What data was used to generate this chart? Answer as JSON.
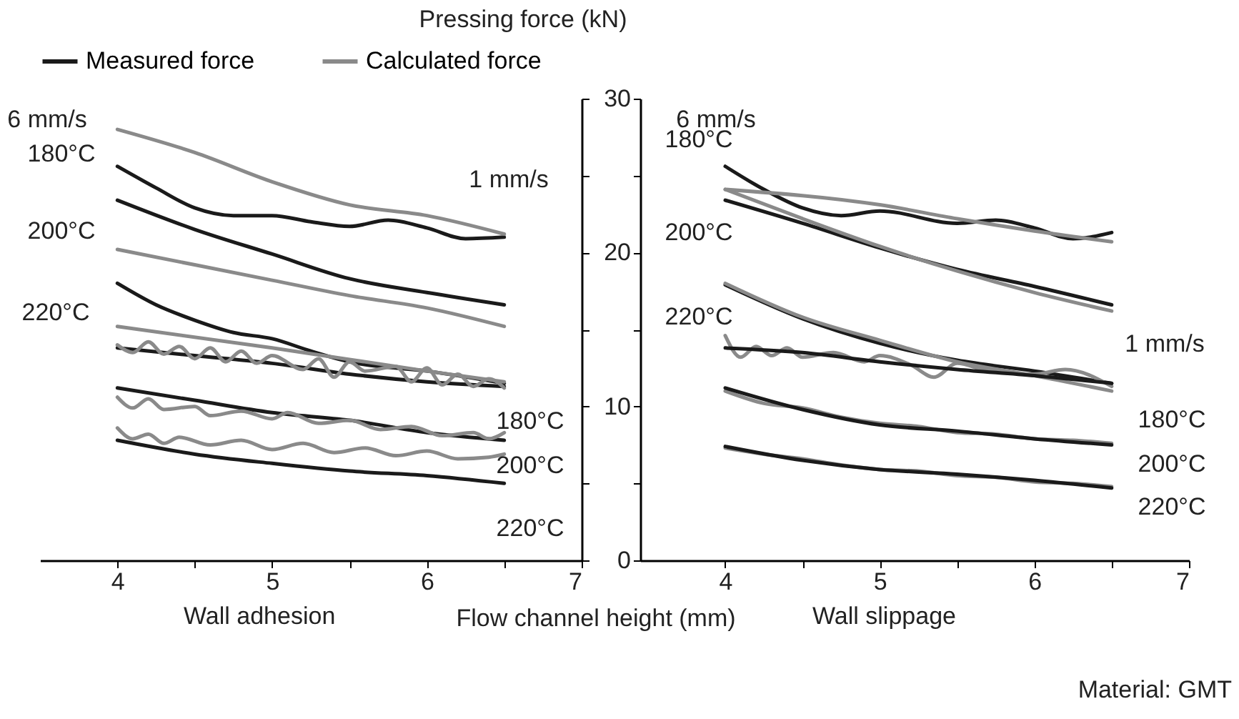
{
  "chart_data": [
    {
      "type": "line",
      "xlabel": "Wall adhesion",
      "title": "Flow channel height (mm)",
      "xlim": [
        3.5,
        7
      ],
      "ylim": [
        0,
        30
      ],
      "xticks": [
        4,
        {
          "value": 4.5,
          "label": null
        },
        5,
        {
          "value": 5.5,
          "label": null
        },
        6,
        {
          "value": 6.5,
          "label": null
        },
        7
      ],
      "yticks": [
        0,
        {
          "value": 5,
          "label": null
        },
        10,
        {
          "value": 15,
          "label": null
        },
        20,
        {
          "value": 25,
          "label": null
        },
        30
      ],
      "tick_labels": "x",
      "legend": "top",
      "line_style": "solid",
      "series": [
        {
          "name": "Measured force",
          "color": "#1a1a1a",
          "x": [
            4,
            4.25,
            4.5,
            4.75,
            5,
            5.25,
            5.5,
            5.75,
            6,
            6.25,
            6.5
          ],
          "values": [
            25.6,
            24.2,
            22.9,
            22.4,
            22.4,
            22.0,
            21.7,
            22.1,
            21.6,
            20.9,
            21.0
          ]
        },
        {
          "name": "Calculated force",
          "color": "#8a8a8a",
          "x": [
            4,
            4.5,
            5,
            5.5,
            6,
            6.5
          ],
          "values": [
            28.0,
            26.5,
            24.6,
            23.1,
            22.4,
            21.2
          ]
        },
        {
          "color": "#1a1a1a",
          "x": [
            4,
            4.5,
            5,
            5.5,
            6,
            6.5
          ],
          "values": [
            23.4,
            21.5,
            19.9,
            18.3,
            17.4,
            16.6
          ]
        },
        {
          "color": "#8a8a8a",
          "x": [
            4,
            4.5,
            5,
            5.5,
            6,
            6.5
          ],
          "values": [
            20.2,
            19.2,
            18.2,
            17.2,
            16.4,
            15.2
          ]
        },
        {
          "color": "#1a1a1a",
          "x": [
            4,
            4.25,
            4.5,
            4.75,
            5,
            5.25,
            5.5,
            6,
            6.5
          ],
          "values": [
            18.0,
            16.6,
            15.6,
            14.8,
            14.4,
            13.6,
            12.9,
            12.3,
            11.5
          ]
        },
        {
          "color": "#1a1a1a",
          "x": [
            4,
            4.5,
            5,
            5.5,
            6,
            6.5
          ],
          "values": [
            13.8,
            13.3,
            12.8,
            12.1,
            11.6,
            11.3
          ]
        },
        {
          "color": "#8a8a8a",
          "x": [
            4,
            5,
            6,
            6.5
          ],
          "values": [
            15.2,
            13.8,
            12.3,
            11.6
          ]
        },
        {
          "color": "#8a8a8a",
          "x": [
            4,
            4.1,
            4.2,
            4.3,
            4.4,
            4.5,
            4.6,
            4.7,
            4.8,
            4.9,
            5,
            5.2,
            5.3,
            5.4,
            5.5,
            5.6,
            5.8,
            5.9,
            6,
            6.1,
            6.2,
            6.3,
            6.4,
            6.5
          ],
          "values": [
            14.0,
            13.5,
            14.2,
            13.4,
            13.9,
            13.1,
            13.8,
            12.9,
            13.6,
            12.8,
            13.3,
            12.4,
            13.1,
            11.9,
            12.9,
            12.3,
            12.6,
            11.6,
            12.5,
            11.4,
            12.1,
            11.3,
            11.8,
            11.2
          ]
        },
        {
          "color": "#1a1a1a",
          "x": [
            4,
            4.5,
            5,
            5.5,
            6,
            6.5
          ],
          "values": [
            11.2,
            10.4,
            9.6,
            9.1,
            8.3,
            7.8
          ]
        },
        {
          "color": "#8a8a8a",
          "x": [
            4,
            4.1,
            4.2,
            4.3,
            4.5,
            4.6,
            4.8,
            5,
            5.1,
            5.3,
            5.5,
            5.7,
            5.9,
            6.1,
            6.3,
            6.4,
            6.5
          ],
          "values": [
            10.6,
            9.9,
            10.5,
            9.8,
            10.0,
            9.4,
            9.7,
            9.2,
            9.6,
            8.9,
            9.1,
            8.5,
            8.7,
            8.1,
            8.3,
            7.9,
            8.3
          ]
        },
        {
          "color": "#8a8a8a",
          "x": [
            4,
            4.1,
            4.2,
            4.3,
            4.4,
            4.6,
            4.8,
            5,
            5.2,
            5.4,
            5.6,
            5.8,
            6,
            6.2,
            6.4,
            6.5
          ],
          "values": [
            8.6,
            7.9,
            8.2,
            7.6,
            8.0,
            7.5,
            7.8,
            7.2,
            7.6,
            7.0,
            7.3,
            6.8,
            7.1,
            6.6,
            6.7,
            6.9
          ]
        },
        {
          "color": "#1a1a1a",
          "x": [
            4,
            4.5,
            5,
            5.5,
            6,
            6.5
          ],
          "values": [
            7.8,
            6.9,
            6.3,
            5.8,
            5.5,
            5.0
          ]
        }
      ],
      "annotations": [
        "6 mm/s",
        "180°C",
        "200°C",
        "220°C",
        "1 mm/s",
        "180°C",
        "200°C",
        "220°C"
      ]
    },
    {
      "type": "line",
      "xlabel": "Wall slippage",
      "ylabel": "Pressing force (kN)",
      "xlim": [
        3.45,
        7
      ],
      "ylim": [
        0,
        30
      ],
      "xticks": [
        4,
        {
          "value": 4.5,
          "label": null
        },
        5,
        {
          "value": 5.5,
          "label": null
        },
        6,
        {
          "value": 6.5,
          "label": null
        },
        7
      ],
      "yticks": [
        0,
        {
          "value": 5,
          "label": null
        },
        10,
        {
          "value": 15,
          "label": null
        },
        20,
        {
          "value": 25,
          "label": null
        },
        30
      ],
      "line_style": "solid",
      "series": [
        {
          "color": "#1a1a1a",
          "x": [
            4,
            4.25,
            4.5,
            4.75,
            5,
            5.5,
            5.75,
            6,
            6.25,
            6.5
          ],
          "values": [
            25.6,
            24.1,
            22.9,
            22.4,
            22.7,
            21.9,
            22.1,
            21.6,
            20.9,
            21.3
          ]
        },
        {
          "color": "#8a8a8a",
          "x": [
            4,
            5,
            5.5,
            6,
            6.5
          ],
          "values": [
            24.1,
            23.1,
            22.2,
            21.4,
            20.7
          ]
        },
        {
          "color": "#1a1a1a",
          "x": [
            4,
            4.5,
            5,
            5.5,
            6,
            6.5
          ],
          "values": [
            23.4,
            21.9,
            20.3,
            18.9,
            17.8,
            16.6
          ]
        },
        {
          "color": "#8a8a8a",
          "x": [
            4,
            4.5,
            5,
            5.5,
            6,
            6.5
          ],
          "values": [
            24.1,
            22.2,
            20.4,
            18.8,
            17.4,
            16.2
          ]
        },
        {
          "color": "#1a1a1a",
          "x": [
            4,
            4.5,
            5,
            5.5,
            6,
            6.5
          ],
          "values": [
            17.9,
            15.7,
            14.1,
            13.0,
            12.3,
            11.5
          ]
        },
        {
          "color": "#8a8a8a",
          "x": [
            4,
            4.5,
            5,
            5.5,
            6,
            6.5
          ],
          "values": [
            18.0,
            15.8,
            14.3,
            12.9,
            12.0,
            11.0
          ]
        },
        {
          "color": "#8a8a8a",
          "x": [
            4,
            4.1,
            4.2,
            4.3,
            4.4,
            4.5,
            4.7,
            4.9,
            5,
            5.2,
            5.35,
            5.5,
            5.7,
            6,
            6.2,
            6.5
          ],
          "values": [
            14.6,
            13.2,
            13.9,
            13.3,
            13.8,
            13.2,
            13.5,
            12.9,
            13.3,
            12.7,
            11.9,
            12.8,
            12.3,
            12.1,
            12.4,
            11.3
          ]
        },
        {
          "color": "#1a1a1a",
          "x": [
            4,
            4.5,
            5,
            5.5,
            6,
            6.5
          ],
          "values": [
            13.8,
            13.5,
            12.9,
            12.4,
            12.0,
            11.5
          ]
        },
        {
          "color": "#8a8a8a",
          "x": [
            4,
            4.25,
            4.5,
            4.75,
            5,
            5.25,
            5.5,
            5.75,
            6,
            6.25,
            6.5
          ],
          "values": [
            11.0,
            10.2,
            9.9,
            9.3,
            8.9,
            8.7,
            8.3,
            8.2,
            7.9,
            7.8,
            7.6
          ]
        },
        {
          "color": "#1a1a1a",
          "x": [
            4,
            4.5,
            5,
            5.5,
            6,
            6.5
          ],
          "values": [
            11.2,
            9.8,
            8.8,
            8.4,
            7.9,
            7.5
          ]
        },
        {
          "color": "#8a8a8a",
          "x": [
            4,
            4.25,
            4.5,
            4.75,
            5,
            5.25,
            5.5,
            5.75,
            6,
            6.25,
            6.5
          ],
          "values": [
            7.3,
            6.9,
            6.6,
            6.2,
            5.9,
            5.8,
            5.5,
            5.4,
            5.1,
            5.0,
            4.8
          ]
        },
        {
          "color": "#1a1a1a",
          "x": [
            4,
            4.5,
            5,
            5.5,
            6,
            6.5
          ],
          "values": [
            7.4,
            6.5,
            5.9,
            5.6,
            5.2,
            4.7
          ]
        }
      ],
      "annotations": [
        "6 mm/s",
        "180°C",
        "200°C",
        "220°C",
        "1 mm/s",
        "180°C",
        "200°C",
        "220°C",
        "Material: GMT"
      ]
    }
  ]
}
